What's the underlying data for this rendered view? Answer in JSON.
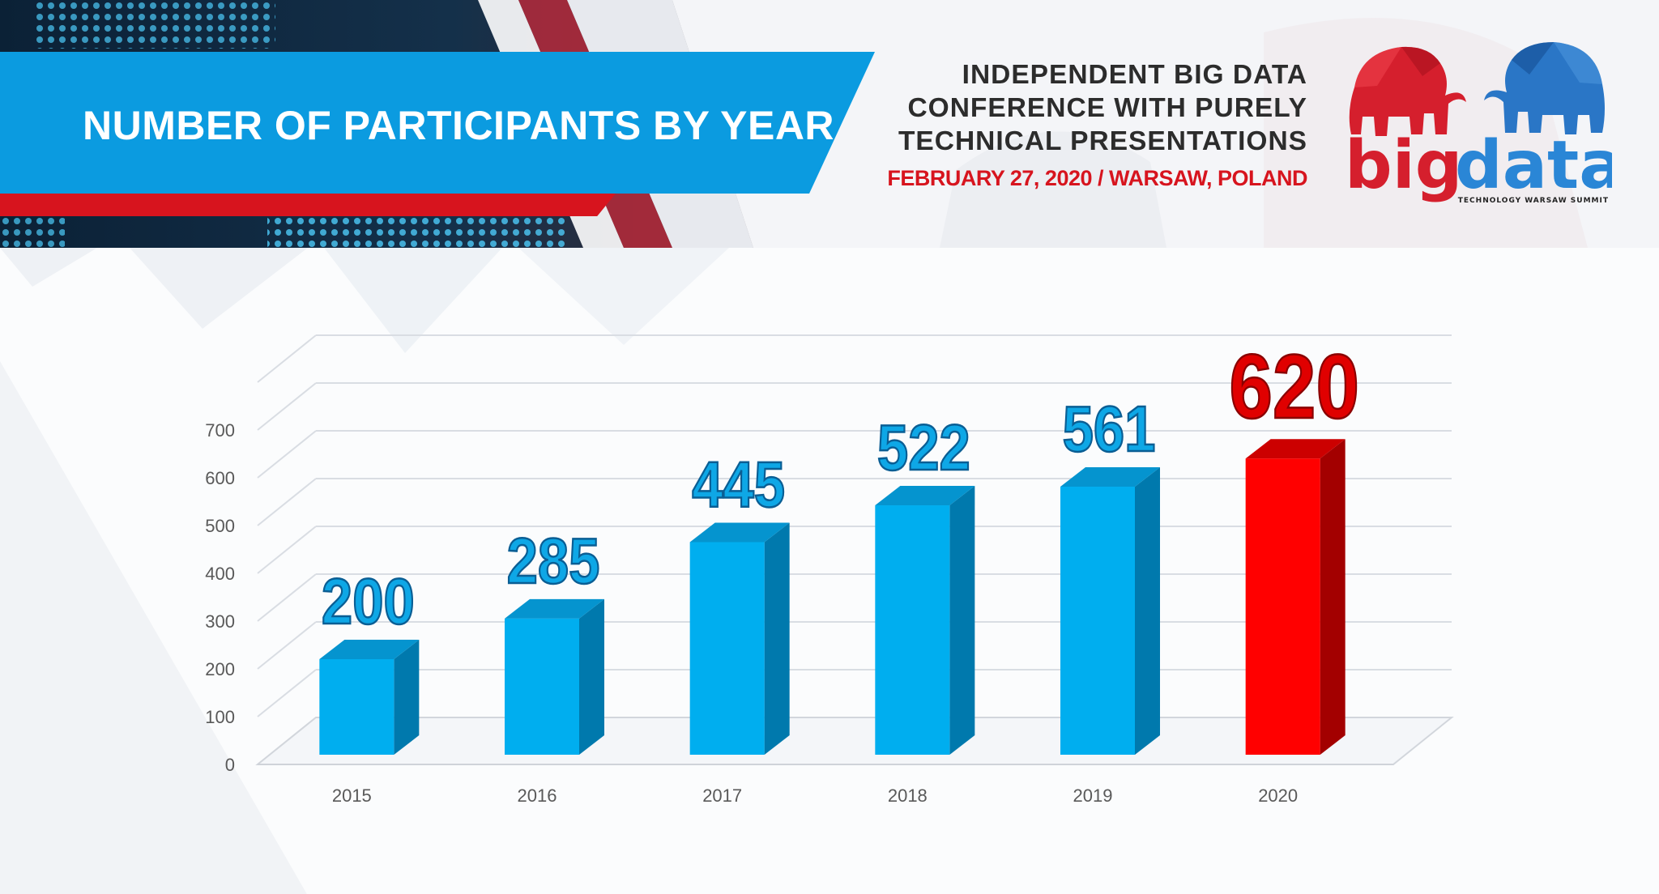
{
  "header": {
    "title": "NUMBER OF PARTICIPANTS BY YEAR",
    "conference_lines": [
      "INDEPENDENT BIG DATA",
      "CONFERENCE WITH PURELY",
      "TECHNICAL PRESENTATIONS"
    ],
    "date_location": "FEBRUARY 27, 2020 / WARSAW, POLAND",
    "logo": {
      "word_big": "big",
      "word_data": "data",
      "tagline": "TECHNOLOGY WARSAW SUMMIT",
      "icons": [
        "red-elephant-icon",
        "blue-elephant-icon"
      ]
    }
  },
  "colors": {
    "brand_blue": "#0b9be0",
    "brand_red": "#d7141e",
    "bar_blue": "#00aeef",
    "bar_red": "#ff0000"
  },
  "chart_data": {
    "type": "bar",
    "style": "3d-column",
    "categories": [
      "2015",
      "2016",
      "2017",
      "2018",
      "2019",
      "2020"
    ],
    "values": [
      200,
      285,
      445,
      522,
      561,
      620
    ],
    "data_labels": [
      "200",
      "285",
      "445",
      "522",
      "561",
      "620"
    ],
    "highlight_category": "2020",
    "y_ticks": [
      "0",
      "100",
      "200",
      "300",
      "400",
      "500",
      "600",
      "700"
    ],
    "ylim": [
      0,
      800
    ],
    "grid": true,
    "legend": "none",
    "title": "",
    "xlabel": "",
    "ylabel": ""
  }
}
